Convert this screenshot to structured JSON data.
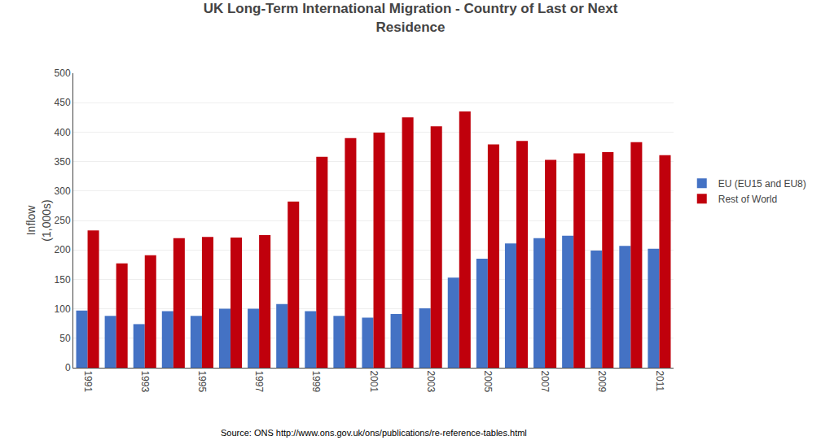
{
  "chart_data": {
    "type": "bar",
    "title": "UK Long-Term International Migration - Country of Last or Next\nResidence",
    "ylabel": "Inflow\n(1,000s)",
    "source": "Source: ONS http://www.ons.gov.uk/ons/publications/re-reference-tables.html",
    "categories": [
      "1991",
      null,
      "1993",
      null,
      "1995",
      null,
      "1997",
      null,
      "1999",
      null,
      "2001",
      null,
      "2003",
      null,
      "2005",
      null,
      "2007",
      null,
      "2009",
      null,
      "2011"
    ],
    "series": [
      {
        "name": "EU (EU15 and EU8)",
        "color": "#4472C4",
        "values": [
          97,
          88,
          74,
          96,
          88,
          100,
          100,
          108,
          96,
          88,
          85,
          91,
          101,
          153,
          185,
          211,
          220,
          224,
          199,
          207,
          202
        ]
      },
      {
        "name": "Rest of World",
        "color": "#C0000C",
        "values": [
          233,
          177,
          191,
          220,
          222,
          221,
          225,
          282,
          358,
          390,
          399,
          425,
          410,
          435,
          379,
          385,
          353,
          364,
          366,
          383,
          361
        ]
      }
    ],
    "ylim": [
      0,
      500
    ],
    "yticks": [
      0,
      50,
      100,
      150,
      200,
      250,
      300,
      350,
      400,
      450,
      500
    ],
    "grid": true,
    "legend": "right"
  }
}
